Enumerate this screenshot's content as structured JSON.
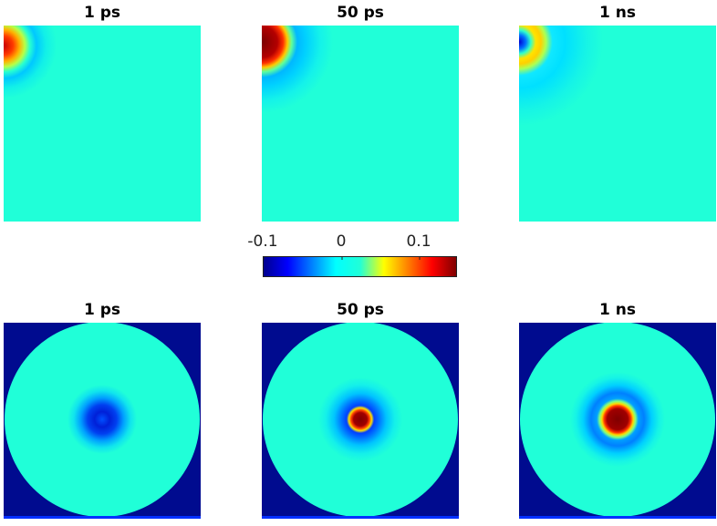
{
  "chart_data": [
    {
      "type": "heatmap",
      "title": "1 ps",
      "row": "top",
      "colormap": "jet",
      "clim": [
        -0.15,
        0.15
      ],
      "features": [
        {
          "kind": "hot-spot",
          "location": "top-left corner",
          "peak_value": 0.13
        },
        {
          "kind": "negative-halo",
          "location": "top-left corner",
          "value": -0.04
        }
      ]
    },
    {
      "type": "heatmap",
      "title": "50 ps",
      "row": "top",
      "colormap": "jet",
      "clim": [
        -0.15,
        0.15
      ],
      "features": [
        {
          "kind": "hot-spot",
          "location": "top-left corner",
          "peak_value": 0.15
        },
        {
          "kind": "negative-halo",
          "location": "top-left corner",
          "value": -0.05
        }
      ]
    },
    {
      "type": "heatmap",
      "title": "1 ns",
      "row": "top",
      "colormap": "jet",
      "clim": [
        -0.15,
        0.15
      ],
      "features": [
        {
          "kind": "cold-core",
          "location": "top-left corner",
          "value": -0.1
        },
        {
          "kind": "warm-ring",
          "location": "top-left corner",
          "value": 0.08
        },
        {
          "kind": "negative-halo",
          "location": "top-left corner",
          "value": -0.02
        }
      ]
    },
    {
      "type": "heatmap",
      "title": "1 ps",
      "row": "bottom",
      "colormap": "jet",
      "clim": [
        -0.15,
        0.15
      ],
      "features": [
        {
          "kind": "cold-ring",
          "location": "center",
          "value": -0.1
        }
      ]
    },
    {
      "type": "heatmap",
      "title": "50 ps",
      "row": "bottom",
      "colormap": "jet",
      "clim": [
        -0.15,
        0.15
      ],
      "features": [
        {
          "kind": "hot-core",
          "location": "center",
          "value": 0.15
        },
        {
          "kind": "cold-ring",
          "location": "center",
          "value": -0.08
        }
      ]
    },
    {
      "type": "heatmap",
      "title": "1 ns",
      "row": "bottom",
      "colormap": "jet",
      "clim": [
        -0.15,
        0.15
      ],
      "features": [
        {
          "kind": "hot-core",
          "location": "center",
          "value": 0.15
        },
        {
          "kind": "warm-ring",
          "location": "center",
          "value": 0.08
        },
        {
          "kind": "cold-ring",
          "location": "center",
          "value": -0.05
        }
      ]
    }
  ],
  "colorbar": {
    "ticks": [
      "-0.1",
      "0",
      "0.1"
    ],
    "tick_values": [
      -0.1,
      0,
      0.1
    ],
    "range": [
      -0.15,
      0.15
    ],
    "colormap": "jet"
  },
  "colors": {
    "background_zero": "#20ffd8",
    "outside_disk": "#000b8f",
    "jet_dark_blue": "#00008f",
    "jet_dark_red": "#800000"
  }
}
